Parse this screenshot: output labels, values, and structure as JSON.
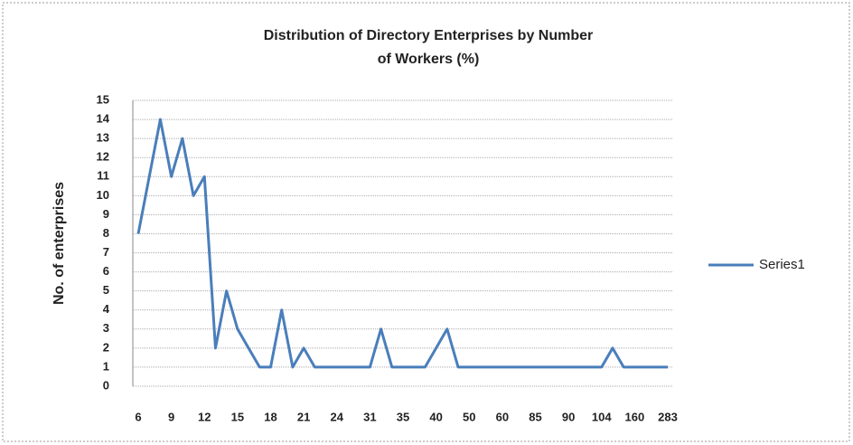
{
  "chart_data": {
    "type": "line",
    "title": "Distribution of Directory Enterprises by Number of Workers (%)",
    "ylabel": "No. of enterprises",
    "categories": [
      "6",
      null,
      null,
      "9",
      null,
      null,
      "12",
      null,
      null,
      "15",
      null,
      null,
      "18",
      null,
      null,
      "21",
      null,
      null,
      "24",
      null,
      null,
      "31",
      null,
      null,
      "35",
      null,
      null,
      "40",
      null,
      null,
      "50",
      null,
      null,
      "60",
      null,
      null,
      "85",
      null,
      null,
      "90",
      null,
      null,
      "104",
      null,
      null,
      "160",
      null,
      null,
      "283"
    ],
    "series": [
      {
        "name": "Series1",
        "color": "#4a7ebb",
        "values": [
          8,
          11,
          14,
          11,
          13,
          10,
          11,
          2,
          5,
          3,
          2,
          1,
          1,
          4,
          1,
          2,
          1,
          1,
          1,
          1,
          1,
          1,
          3,
          1,
          1,
          1,
          1,
          2,
          3,
          1,
          1,
          1,
          1,
          1,
          1,
          1,
          1,
          1,
          1,
          1,
          1,
          1,
          1,
          2,
          1,
          1,
          1,
          1,
          1
        ]
      }
    ],
    "ylim": [
      0,
      15
    ],
    "yticks": [
      0,
      1,
      2,
      3,
      4,
      5,
      6,
      7,
      8,
      9,
      10,
      11,
      12,
      13,
      14,
      15
    ],
    "grid": true,
    "legend": "right"
  }
}
